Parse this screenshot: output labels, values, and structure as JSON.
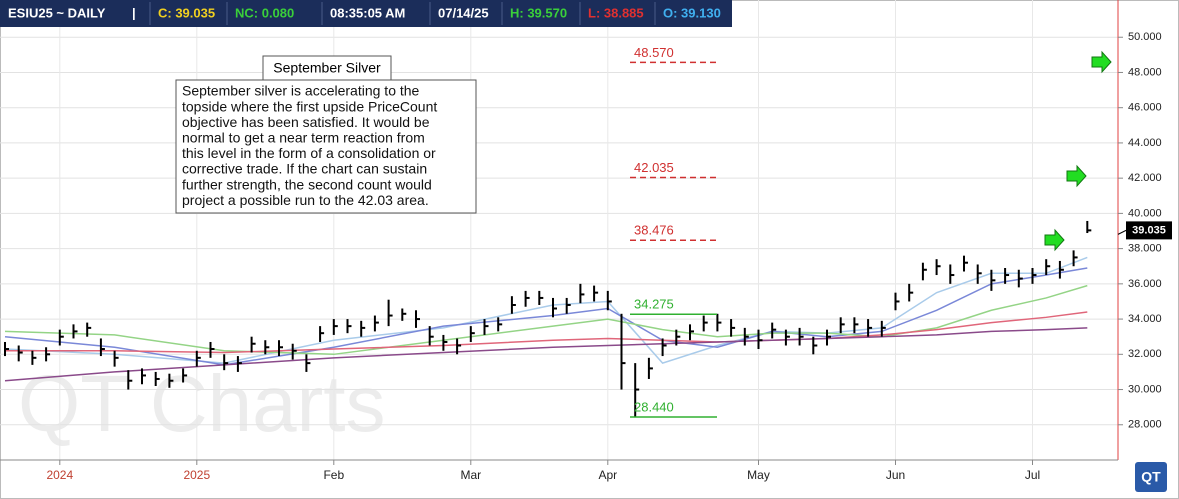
{
  "chart_data": {
    "type": "ohlc",
    "header": [
      {
        "text": "ESIU25 ~ DAILY",
        "color": "#ffffff"
      },
      {
        "text": "|",
        "color": "#ffffff"
      },
      {
        "text": "C: 39.035",
        "color": "#f0d020"
      },
      {
        "text": "NC: 0.080",
        "color": "#3ad03a"
      },
      {
        "text": "08:35:05 AM",
        "color": "#ffffff"
      },
      {
        "text": "07/14/25",
        "color": "#ffffff"
      },
      {
        "text": "H: 39.570",
        "color": "#3ad03a"
      },
      {
        "text": "L: 38.885",
        "color": "#e03030"
      },
      {
        "text": "O: 39.130",
        "color": "#40b0f0"
      }
    ],
    "categories": [
      null,
      null,
      null,
      null,
      "2024",
      null,
      null,
      null,
      null,
      null,
      null,
      null,
      null,
      null,
      "2025",
      null,
      null,
      null,
      null,
      null,
      null,
      null,
      null,
      null,
      "Feb",
      null,
      null,
      null,
      null,
      null,
      null,
      null,
      null,
      null,
      "Mar",
      null,
      null,
      null,
      null,
      null,
      null,
      null,
      null,
      null,
      "Apr",
      null,
      null,
      null,
      null,
      null,
      null,
      null,
      null,
      null,
      null,
      "May",
      null,
      null,
      null,
      null,
      null,
      null,
      null,
      null,
      null,
      "Jun",
      null,
      null,
      null,
      null,
      null,
      null,
      null,
      null,
      null,
      "Jul",
      null,
      null,
      null,
      null
    ],
    "high": [
      32.7,
      32.5,
      32.2,
      32.4,
      33.4,
      33.7,
      33.8,
      32.9,
      32.2,
      31.1,
      31.2,
      31.0,
      30.9,
      31.2,
      32.2,
      32.7,
      32.0,
      31.9,
      33.0,
      32.8,
      32.8,
      32.6,
      32.0,
      33.6,
      34.0,
      34.0,
      33.9,
      34.2,
      35.1,
      34.6,
      34.5,
      33.6,
      33.1,
      32.9,
      33.6,
      34.0,
      34.1,
      35.3,
      35.6,
      35.6,
      35.2,
      35.2,
      36.0,
      35.9,
      35.6,
      34.3,
      31.5,
      31.8,
      32.9,
      33.4,
      33.7,
      34.2,
      34.3,
      34.0,
      33.5,
      33.4,
      33.8,
      33.4,
      33.5,
      33.0,
      33.4,
      34.1,
      34.1,
      34.0,
      33.9,
      35.5,
      36.0,
      37.2,
      37.4,
      37.1,
      37.6,
      37.1,
      36.8,
      36.9,
      36.8,
      36.9,
      37.4,
      37.3,
      37.9,
      39.57
    ],
    "low": [
      31.9,
      31.6,
      31.4,
      31.6,
      32.5,
      32.9,
      33.0,
      31.9,
      31.3,
      30.0,
      30.3,
      30.2,
      30.1,
      30.4,
      31.3,
      31.8,
      31.1,
      31.0,
      32.1,
      32.0,
      31.9,
      31.7,
      31.0,
      32.7,
      33.1,
      33.2,
      33.0,
      33.3,
      33.6,
      33.9,
      33.5,
      32.5,
      32.2,
      32.0,
      32.7,
      33.1,
      33.3,
      34.3,
      34.7,
      34.8,
      34.1,
      34.3,
      34.9,
      35.0,
      34.5,
      30.0,
      28.44,
      30.6,
      31.9,
      32.5,
      32.8,
      33.3,
      33.3,
      33.0,
      32.5,
      32.3,
      32.9,
      32.5,
      32.5,
      32.0,
      32.5,
      33.2,
      33.2,
      33.0,
      33.0,
      34.5,
      35.0,
      36.2,
      36.5,
      36.0,
      36.7,
      36.0,
      35.6,
      36.0,
      35.8,
      36.0,
      36.5,
      36.3,
      37.0,
      38.885
    ],
    "close": [
      32.3,
      32.1,
      31.8,
      32.0,
      33.0,
      33.3,
      33.5,
      32.3,
      31.8,
      30.5,
      30.8,
      30.6,
      30.5,
      30.8,
      31.8,
      32.3,
      31.5,
      31.5,
      32.6,
      32.4,
      32.4,
      32.2,
      31.5,
      33.2,
      33.6,
      33.6,
      33.5,
      33.8,
      34.2,
      34.3,
      34.0,
      33.0,
      32.7,
      32.5,
      33.2,
      33.6,
      33.7,
      34.8,
      35.2,
      35.2,
      34.6,
      34.8,
      35.4,
      35.5,
      35.0,
      31.5,
      30.0,
      31.2,
      32.5,
      33.0,
      33.3,
      33.8,
      33.8,
      33.5,
      33.0,
      32.8,
      33.4,
      33.0,
      33.0,
      32.5,
      33.0,
      33.7,
      33.7,
      33.5,
      33.5,
      35.0,
      35.5,
      36.8,
      37.0,
      36.5,
      37.2,
      36.6,
      36.2,
      36.5,
      36.3,
      36.5,
      37.0,
      36.8,
      37.5,
      39.035
    ],
    "bar_color": "#000000",
    "ma_x": [
      0,
      8,
      16,
      24,
      32,
      40,
      44,
      48,
      52,
      56,
      60,
      64,
      68,
      72,
      76,
      79
    ],
    "moving_averages": [
      {
        "color": "#a9cbea",
        "values": [
          32.3,
          32.0,
          31.5,
          32.8,
          33.5,
          34.8,
          35.0,
          31.5,
          32.5,
          33.3,
          33.2,
          33.5,
          35.5,
          36.6,
          36.6,
          37.5
        ]
      },
      {
        "color": "#7a88d8",
        "values": [
          33.0,
          32.4,
          31.4,
          32.4,
          33.6,
          34.2,
          34.6,
          32.8,
          32.4,
          33.3,
          33.0,
          33.3,
          34.5,
          36.0,
          36.5,
          36.9
        ]
      },
      {
        "color": "#94d486",
        "values": [
          33.3,
          33.1,
          32.2,
          32.0,
          32.8,
          33.6,
          34.0,
          33.4,
          33.0,
          33.2,
          33.2,
          33.0,
          33.5,
          34.5,
          35.2,
          35.9
        ]
      },
      {
        "color": "#e0667a",
        "values": [
          32.2,
          32.2,
          32.1,
          32.3,
          32.5,
          32.8,
          32.9,
          32.8,
          32.7,
          32.8,
          32.9,
          33.1,
          33.4,
          33.8,
          34.1,
          34.4
        ]
      },
      {
        "color": "#8a4a8a",
        "values": [
          30.5,
          31.0,
          31.4,
          31.8,
          32.1,
          32.4,
          32.5,
          32.6,
          32.7,
          32.8,
          32.9,
          33.0,
          33.1,
          33.3,
          33.4,
          33.5
        ]
      }
    ],
    "levels": [
      {
        "value": 48.57,
        "label": "48.570",
        "color": "#d03030",
        "dashed": true
      },
      {
        "value": 42.035,
        "label": "42.035",
        "color": "#d03030",
        "dashed": true
      },
      {
        "value": 38.476,
        "label": "38.476",
        "color": "#d03030",
        "dashed": true
      },
      {
        "value": 34.275,
        "label": "34.275",
        "color": "#30b030",
        "dashed": false
      },
      {
        "value": 28.44,
        "label": "28.440",
        "color": "#30b030",
        "dashed": false
      }
    ],
    "last": {
      "value": 39.035,
      "label": "39.035"
    },
    "ylim": [
      26,
      52
    ],
    "yticks": [
      {
        "value": 28,
        "label": "28.000"
      },
      {
        "value": 30,
        "label": "30.000"
      },
      {
        "value": 32,
        "label": "32.000"
      },
      {
        "value": 34,
        "label": "34.000"
      },
      {
        "value": 36,
        "label": "36.000"
      },
      {
        "value": 38,
        "label": "38.000"
      },
      {
        "value": 40,
        "label": "40.000"
      },
      {
        "value": 42,
        "label": "42.000"
      },
      {
        "value": 44,
        "label": "44.000"
      },
      {
        "value": 46,
        "label": "46.000"
      },
      {
        "value": 48,
        "label": "48.000"
      },
      {
        "value": 50,
        "label": "50.000"
      }
    ],
    "grid": true,
    "annotation_title": "September Silver",
    "annotation_lines": [
      "September silver is accelerating to the",
      "topside where the first upside PriceCount",
      "objective has been satisfied.  It would be",
      "normal to get a near term reaction from",
      "this level in the form of a consolidation or",
      "corrective trade.  If the chart can sustain",
      "further strength, the second count would",
      "project a possible run to the 42.03 area."
    ],
    "watermark": "QT Charts",
    "logo": "QT"
  }
}
